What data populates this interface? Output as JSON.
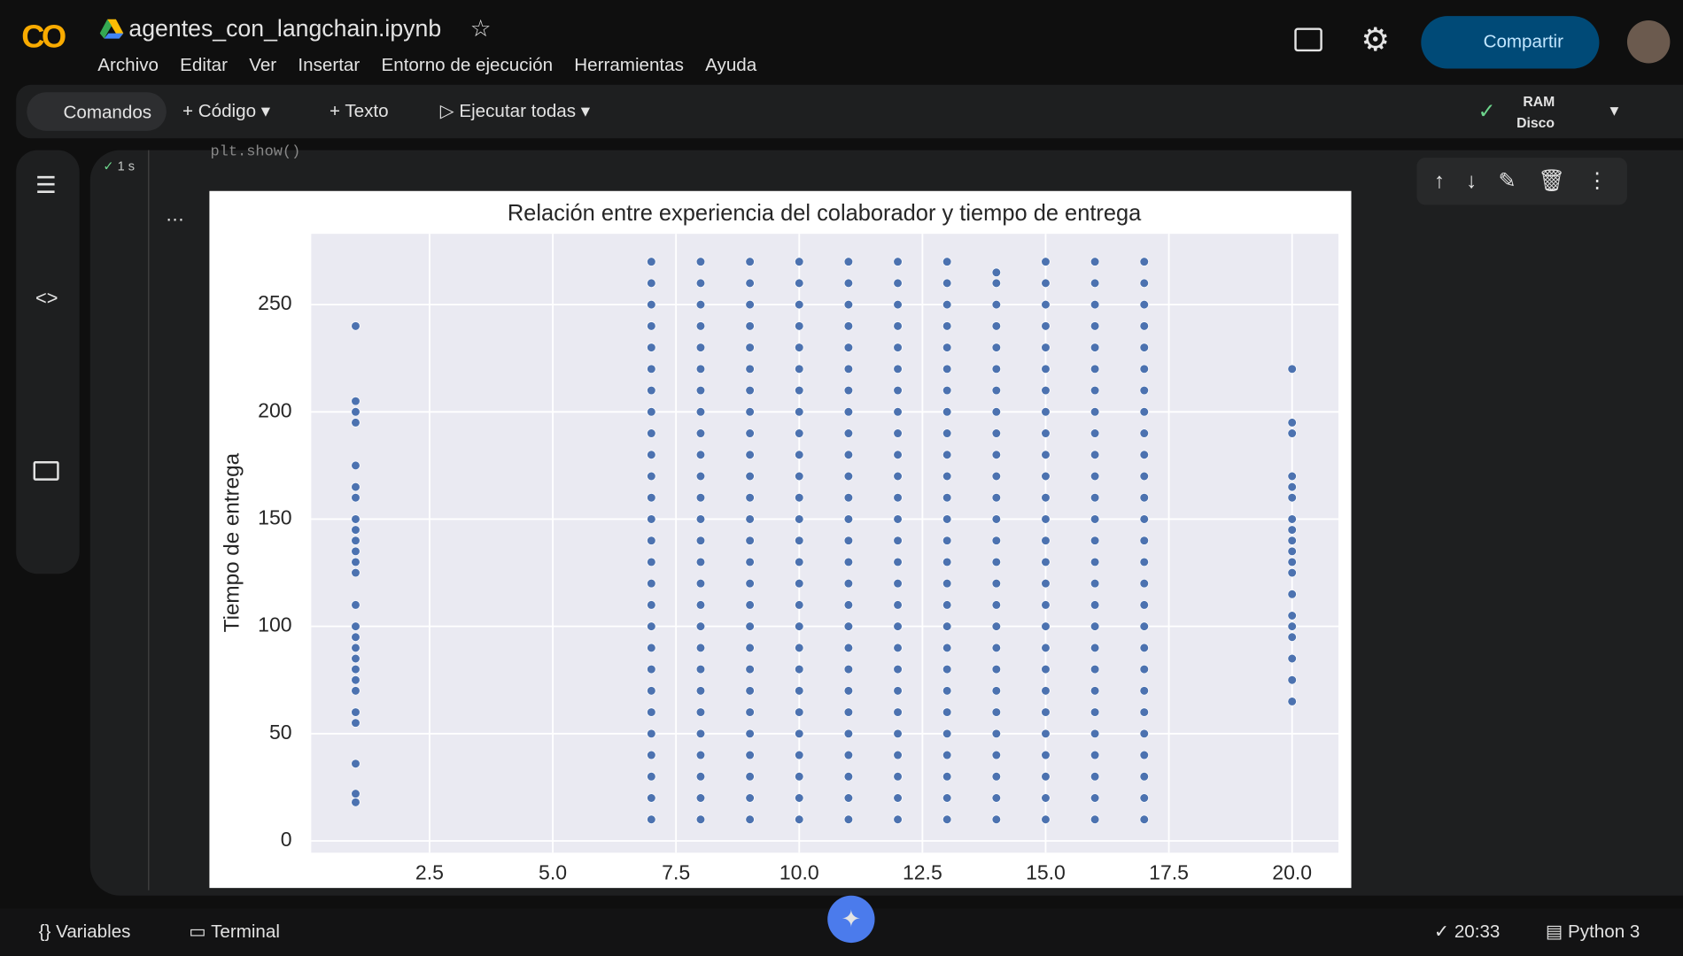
{
  "ui": {
    "logo": "CO",
    "file_name": "agentes_con_langchain.ipynb",
    "menu": [
      "Archivo",
      "Editar",
      "Ver",
      "Insertar",
      "Entorno de ejecución",
      "Herramientas",
      "Ayuda"
    ],
    "share": "Compartir",
    "toolbar": {
      "commands": "Comandos",
      "code": "Código",
      "text": "Texto",
      "run_all": "Ejecutar todas",
      "ram": "RAM",
      "disk": "Disco"
    },
    "cell": {
      "exec_time": "1 s",
      "code": "plt.show()"
    },
    "status": {
      "variables": "Variables",
      "terminal": "Terminal",
      "time": "20:33",
      "runtime": "Python 3"
    }
  },
  "chart_data": {
    "type": "scatter",
    "title": "Relación entre experiencia del colaborador y tiempo de entrega",
    "y_label": "Tiempo de entrega",
    "color": "#4c72b0",
    "background": "#eaeaf2",
    "grid": true,
    "xlim": [
      0.1,
      20.94
    ],
    "ylim": [
      -5.5,
      283
    ],
    "xticks": [
      2.5,
      {
        "value": 5,
        "label": "5.0"
      },
      7.5,
      {
        "value": 10,
        "label": "10.0"
      },
      12.5,
      {
        "value": 15,
        "label": "15.0"
      },
      17.5,
      {
        "value": 20,
        "label": "20.0"
      }
    ],
    "yticks": [
      0,
      50,
      100,
      150,
      200,
      250
    ],
    "x": [
      1,
      1,
      1,
      1,
      1,
      1,
      1,
      1,
      1,
      1,
      1,
      1,
      1,
      1,
      1,
      1,
      1,
      1,
      1,
      1,
      1,
      1,
      1,
      1,
      1,
      1,
      7,
      7,
      7,
      7,
      7,
      7,
      7,
      7,
      7,
      7,
      7,
      7,
      7,
      7,
      7,
      7,
      7,
      7,
      7,
      7,
      7,
      7,
      7,
      7,
      7,
      7,
      7,
      8,
      8,
      8,
      8,
      8,
      8,
      8,
      8,
      8,
      8,
      8,
      8,
      8,
      8,
      8,
      8,
      8,
      8,
      8,
      8,
      8,
      8,
      8,
      8,
      8,
      8,
      8,
      9,
      9,
      9,
      9,
      9,
      9,
      9,
      9,
      9,
      9,
      9,
      9,
      9,
      9,
      9,
      9,
      9,
      9,
      9,
      9,
      9,
      9,
      9,
      9,
      9,
      9,
      9,
      10,
      10,
      10,
      10,
      10,
      10,
      10,
      10,
      10,
      10,
      10,
      10,
      10,
      10,
      10,
      10,
      10,
      10,
      10,
      10,
      10,
      10,
      10,
      10,
      10,
      10,
      10,
      11,
      11,
      11,
      11,
      11,
      11,
      11,
      11,
      11,
      11,
      11,
      11,
      11,
      11,
      11,
      11,
      11,
      11,
      11,
      11,
      11,
      11,
      11,
      11,
      11,
      11,
      11,
      12,
      12,
      12,
      12,
      12,
      12,
      12,
      12,
      12,
      12,
      12,
      12,
      12,
      12,
      12,
      12,
      12,
      12,
      12,
      12,
      12,
      12,
      12,
      12,
      12,
      12,
      12,
      13,
      13,
      13,
      13,
      13,
      13,
      13,
      13,
      13,
      13,
      13,
      13,
      13,
      13,
      13,
      13,
      13,
      13,
      13,
      13,
      13,
      13,
      13,
      13,
      13,
      13,
      13,
      14,
      14,
      14,
      14,
      14,
      14,
      14,
      14,
      14,
      14,
      14,
      14,
      14,
      14,
      14,
      14,
      14,
      14,
      14,
      14,
      14,
      14,
      14,
      14,
      14,
      14,
      14,
      15,
      15,
      15,
      15,
      15,
      15,
      15,
      15,
      15,
      15,
      15,
      15,
      15,
      15,
      15,
      15,
      15,
      15,
      15,
      15,
      15,
      15,
      15,
      15,
      15,
      15,
      15,
      16,
      16,
      16,
      16,
      16,
      16,
      16,
      16,
      16,
      16,
      16,
      16,
      16,
      16,
      16,
      16,
      16,
      16,
      16,
      16,
      16,
      16,
      16,
      16,
      16,
      16,
      16,
      17,
      17,
      17,
      17,
      17,
      17,
      17,
      17,
      17,
      17,
      17,
      17,
      17,
      17,
      17,
      17,
      17,
      17,
      17,
      17,
      17,
      17,
      17,
      17,
      17,
      17,
      17,
      20,
      20,
      20,
      20,
      20,
      20,
      20,
      20,
      20,
      20,
      20,
      20,
      20,
      20,
      20,
      20,
      20,
      20,
      20
    ],
    "values": [
      240,
      205,
      200,
      195,
      175,
      165,
      160,
      150,
      145,
      140,
      135,
      130,
      125,
      110,
      100,
      95,
      90,
      85,
      80,
      75,
      70,
      60,
      55,
      36,
      22,
      18,
      10,
      20,
      30,
      40,
      50,
      60,
      70,
      80,
      90,
      100,
      110,
      120,
      130,
      140,
      150,
      160,
      170,
      180,
      190,
      200,
      210,
      220,
      230,
      240,
      250,
      260,
      270,
      10,
      20,
      30,
      40,
      50,
      60,
      70,
      80,
      90,
      100,
      110,
      120,
      130,
      140,
      150,
      160,
      170,
      180,
      190,
      200,
      210,
      220,
      230,
      240,
      250,
      260,
      270,
      10,
      20,
      30,
      40,
      50,
      60,
      70,
      80,
      90,
      100,
      110,
      120,
      130,
      140,
      150,
      160,
      170,
      180,
      190,
      200,
      210,
      220,
      230,
      240,
      250,
      260,
      270,
      10,
      20,
      30,
      40,
      50,
      60,
      70,
      80,
      90,
      100,
      110,
      120,
      130,
      140,
      150,
      160,
      170,
      180,
      190,
      200,
      210,
      220,
      230,
      240,
      250,
      260,
      270,
      10,
      20,
      30,
      40,
      50,
      60,
      70,
      80,
      90,
      100,
      110,
      120,
      130,
      140,
      150,
      160,
      170,
      180,
      190,
      200,
      210,
      220,
      230,
      240,
      250,
      260,
      270,
      10,
      20,
      30,
      40,
      50,
      60,
      70,
      80,
      90,
      100,
      110,
      120,
      130,
      140,
      150,
      160,
      170,
      180,
      190,
      200,
      210,
      220,
      230,
      240,
      250,
      260,
      270,
      10,
      20,
      30,
      40,
      50,
      60,
      70,
      80,
      90,
      100,
      110,
      120,
      130,
      140,
      150,
      160,
      170,
      180,
      190,
      200,
      210,
      220,
      230,
      240,
      250,
      260,
      270,
      10,
      20,
      30,
      40,
      50,
      60,
      70,
      80,
      90,
      100,
      110,
      120,
      130,
      140,
      150,
      160,
      170,
      180,
      190,
      200,
      210,
      220,
      230,
      240,
      250,
      260,
      265,
      10,
      20,
      30,
      40,
      50,
      60,
      70,
      80,
      90,
      100,
      110,
      120,
      130,
      140,
      150,
      160,
      170,
      180,
      190,
      200,
      210,
      220,
      230,
      240,
      250,
      260,
      270,
      10,
      20,
      30,
      40,
      50,
      60,
      70,
      80,
      90,
      100,
      110,
      120,
      130,
      140,
      150,
      160,
      170,
      180,
      190,
      200,
      210,
      220,
      230,
      240,
      250,
      260,
      270,
      10,
      20,
      30,
      40,
      50,
      60,
      70,
      80,
      90,
      100,
      110,
      120,
      130,
      140,
      150,
      160,
      170,
      180,
      190,
      200,
      210,
      220,
      230,
      240,
      250,
      260,
      270,
      220,
      195,
      190,
      170,
      165,
      160,
      150,
      145,
      140,
      135,
      130,
      125,
      115,
      105,
      100,
      95,
      85,
      75,
      65
    ]
  }
}
